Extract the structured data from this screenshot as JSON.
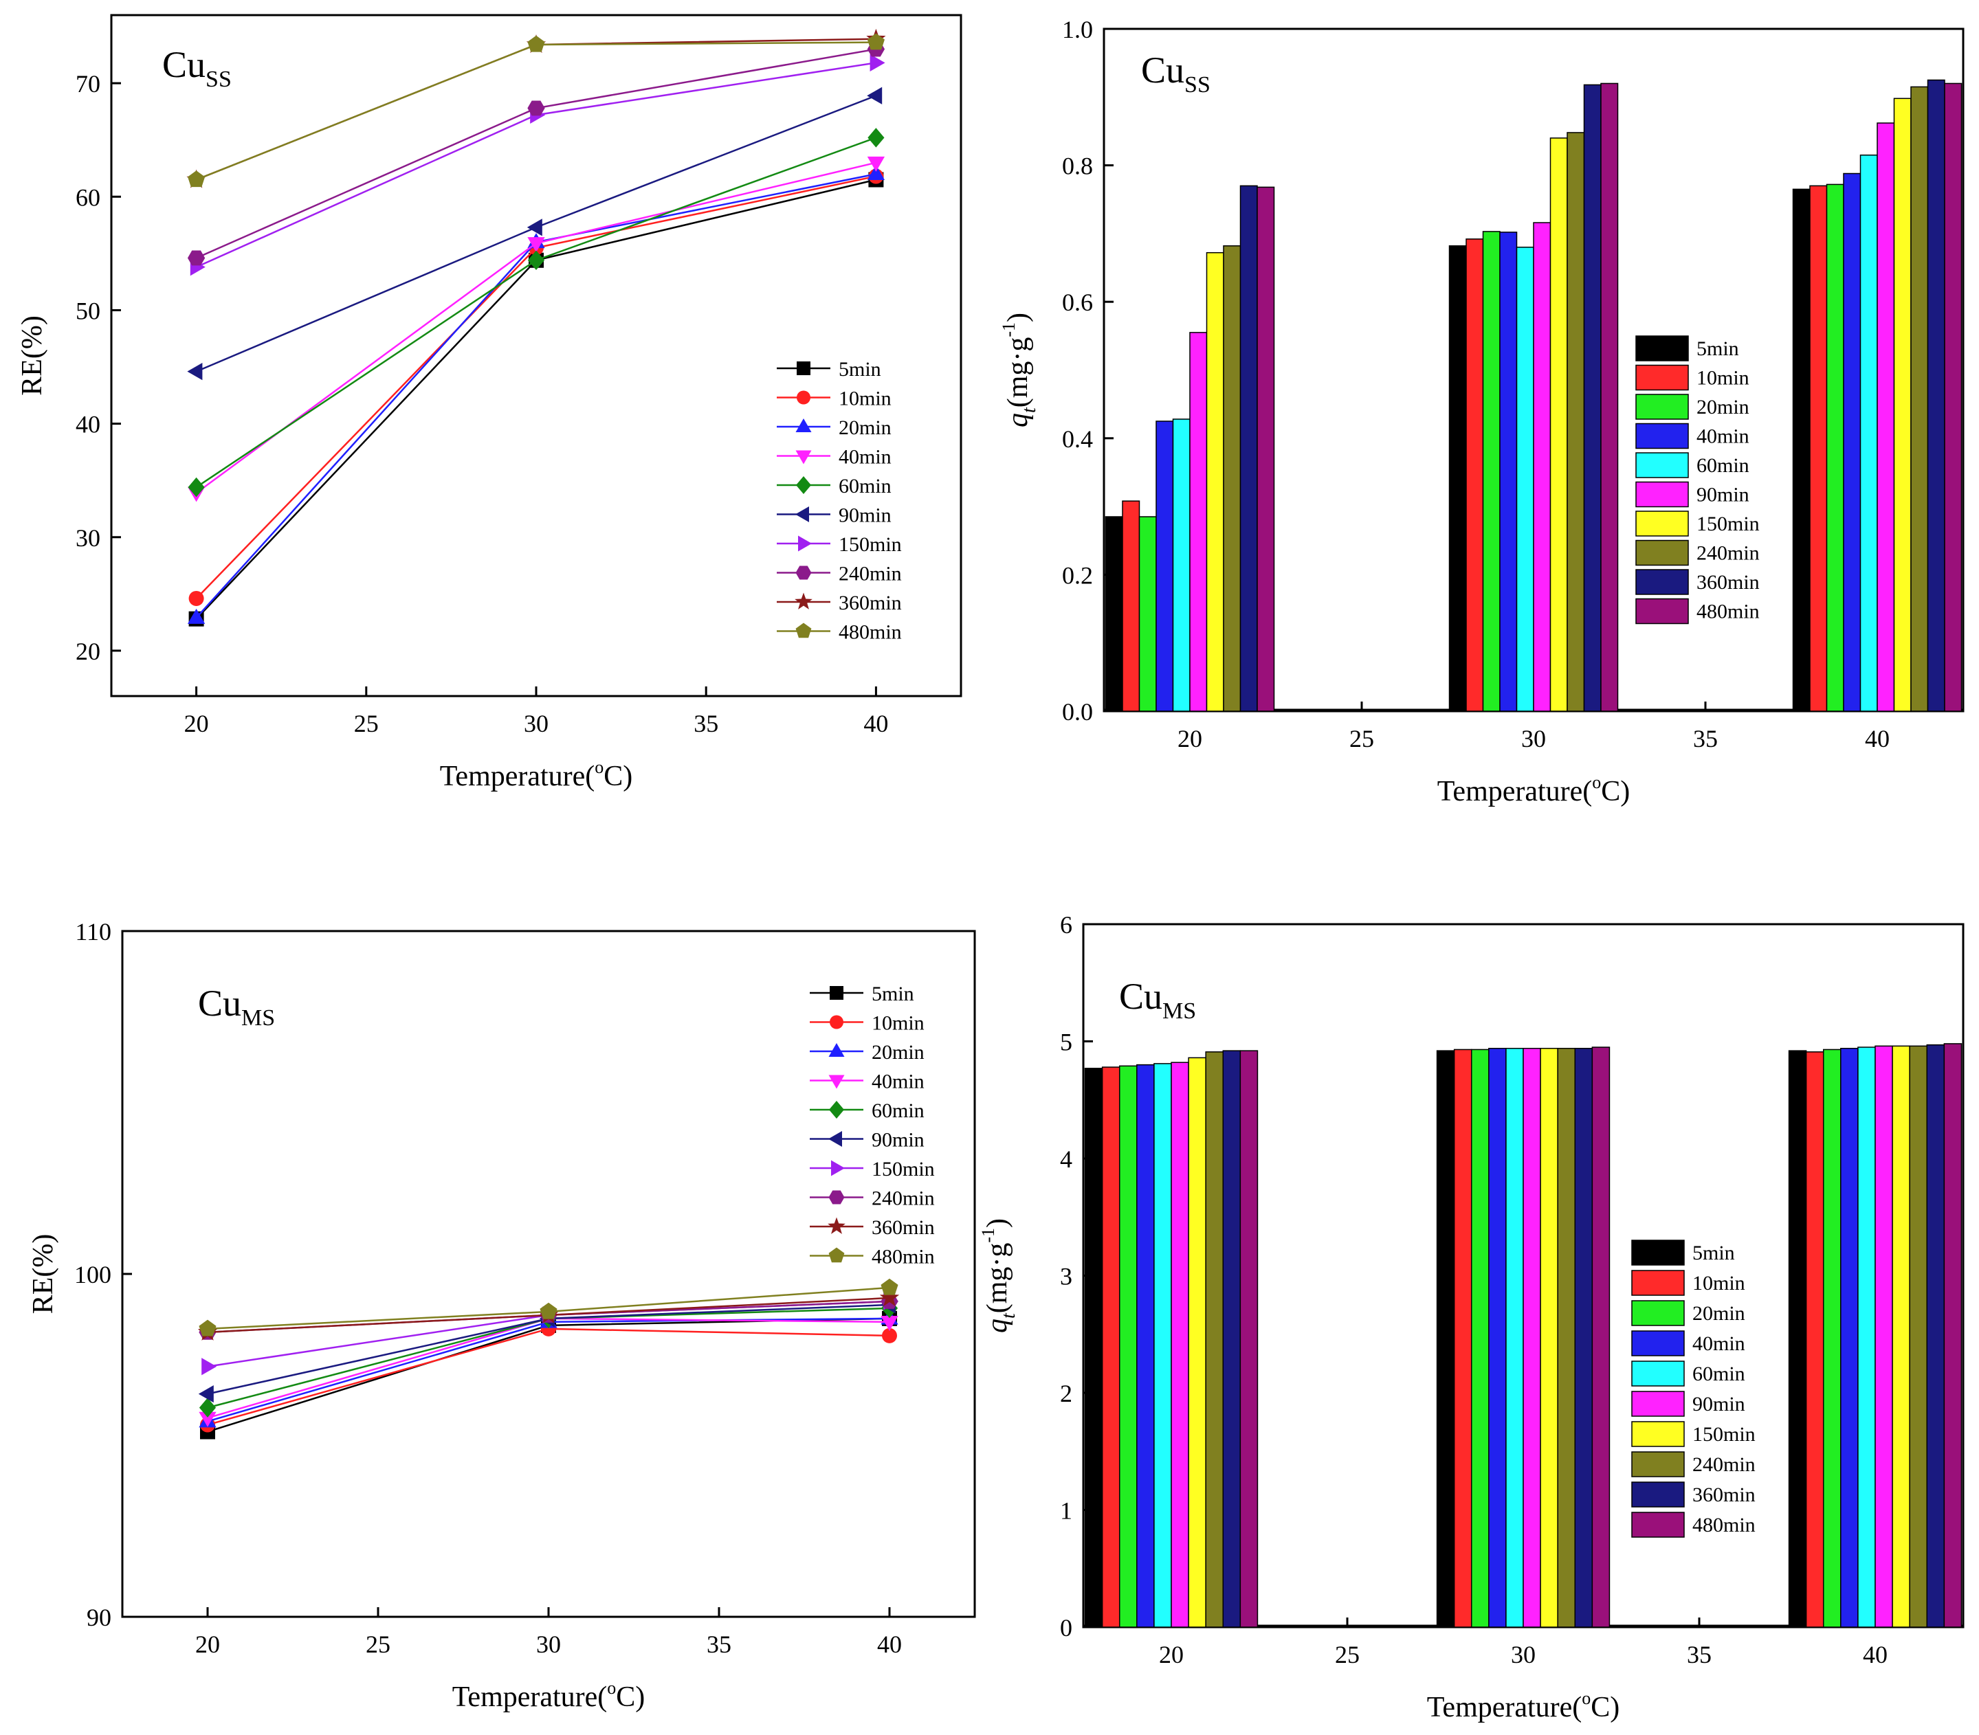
{
  "figure_panels": {
    "tl": {
      "title": "Cu",
      "subscript": "SS"
    },
    "tr": {
      "title": "Cu",
      "subscript": "SS"
    },
    "bl": {
      "title": "Cu",
      "subscript": "MS"
    },
    "br": {
      "title": "Cu",
      "subscript": "MS"
    }
  },
  "axis_text": {
    "x_label_main": "Temperature(",
    "x_label_deg": "o",
    "x_label_unit": "C)",
    "re_label": "RE(%)",
    "q_label_q": "q",
    "q_label_t": "t",
    "q_label_unit": "(mg·g",
    "q_label_exp": "-1",
    "q_label_close": ")"
  },
  "series_style": [
    {
      "name": "5min",
      "color": "#000000",
      "marker": "square"
    },
    {
      "name": "10min",
      "color": "#ff2020",
      "marker": "circle"
    },
    {
      "name": "20min",
      "color": "#2020ff",
      "marker": "triangle-up"
    },
    {
      "name": "40min",
      "color": "#ff20ff",
      "marker": "triangle-down"
    },
    {
      "name": "60min",
      "color": "#138a13",
      "marker": "diamond"
    },
    {
      "name": "90min",
      "color": "#1a1a80",
      "marker": "triangle-left"
    },
    {
      "name": "150min",
      "color": "#a020f0",
      "marker": "triangle-right"
    },
    {
      "name": "240min",
      "color": "#8b1a8b",
      "marker": "hexagon"
    },
    {
      "name": "360min",
      "color": "#8b1a1a",
      "marker": "star"
    },
    {
      "name": "480min",
      "color": "#808020",
      "marker": "pentagon"
    }
  ],
  "bar_colors": [
    "#000000",
    "#ff2a2a",
    "#22ee22",
    "#2222ee",
    "#22ffff",
    "#ff22ff",
    "#ffff22",
    "#808020",
    "#1a1a80",
    "#9a107a"
  ],
  "chart_data": [
    {
      "id": "tl",
      "type": "line",
      "title": "Cu_SS",
      "xlabel": "Temperature(°C)",
      "ylabel": "RE(%)",
      "x": [
        20,
        30,
        40
      ],
      "xlim": [
        17.5,
        42.5
      ],
      "ylim": [
        16,
        76
      ],
      "xticks": [
        20,
        25,
        30,
        35,
        40
      ],
      "yticks": [
        20,
        30,
        40,
        50,
        60,
        70
      ],
      "legend": "bottom-right",
      "series": [
        {
          "name": "5min",
          "values": [
            22.8,
            54.4,
            61.5
          ]
        },
        {
          "name": "10min",
          "values": [
            24.6,
            55.5,
            61.8
          ]
        },
        {
          "name": "20min",
          "values": [
            22.9,
            56.0,
            62.0
          ]
        },
        {
          "name": "40min",
          "values": [
            33.9,
            55.9,
            63.0
          ]
        },
        {
          "name": "60min",
          "values": [
            34.4,
            54.4,
            65.2
          ]
        },
        {
          "name": "90min",
          "values": [
            44.6,
            57.3,
            68.9
          ]
        },
        {
          "name": "150min",
          "values": [
            53.8,
            67.2,
            71.8
          ]
        },
        {
          "name": "240min",
          "values": [
            54.6,
            67.8,
            73.0
          ]
        },
        {
          "name": "360min",
          "values": [
            61.5,
            73.4,
            73.9
          ]
        },
        {
          "name": "480min",
          "values": [
            61.5,
            73.4,
            73.6
          ]
        }
      ]
    },
    {
      "id": "tr",
      "type": "bar",
      "title": "Cu_SS",
      "xlabel": "Temperature(°C)",
      "ylabel": "qt(mg·g-1)",
      "categories": [
        20,
        30,
        40
      ],
      "xlim": [
        17.5,
        42.5
      ],
      "ylim": [
        0,
        1.0
      ],
      "xticks": [
        20,
        25,
        30,
        35,
        40
      ],
      "yticks": [
        0.0,
        0.2,
        0.4,
        0.6,
        0.8,
        1.0
      ],
      "ytick_labels": [
        "0.0",
        "0.2",
        "0.4",
        "0.6",
        "0.8",
        "1.0"
      ],
      "legend": "center-right",
      "series": [
        {
          "name": "5min",
          "values": [
            0.285,
            0.682,
            0.765
          ]
        },
        {
          "name": "10min",
          "values": [
            0.308,
            0.692,
            0.77
          ]
        },
        {
          "name": "20min",
          "values": [
            0.285,
            0.703,
            0.772
          ]
        },
        {
          "name": "40min",
          "values": [
            0.425,
            0.702,
            0.788
          ]
        },
        {
          "name": "60min",
          "values": [
            0.428,
            0.68,
            0.815
          ]
        },
        {
          "name": "90min",
          "values": [
            0.555,
            0.716,
            0.862
          ]
        },
        {
          "name": "150min",
          "values": [
            0.672,
            0.84,
            0.898
          ]
        },
        {
          "name": "240min",
          "values": [
            0.682,
            0.848,
            0.915
          ]
        },
        {
          "name": "360min",
          "values": [
            0.77,
            0.918,
            0.925
          ]
        },
        {
          "name": "480min",
          "values": [
            0.768,
            0.92,
            0.92
          ]
        }
      ]
    },
    {
      "id": "bl",
      "type": "line",
      "title": "Cu_MS",
      "xlabel": "Temperature(°C)",
      "ylabel": "RE(%)",
      "x": [
        20,
        30,
        40
      ],
      "xlim": [
        17.5,
        42.5
      ],
      "ylim": [
        90,
        110
      ],
      "xticks": [
        20,
        25,
        30,
        35,
        40
      ],
      "yticks": [
        90,
        100,
        110
      ],
      "legend": "top-right",
      "series": [
        {
          "name": "5min",
          "values": [
            95.4,
            98.5,
            98.7
          ]
        },
        {
          "name": "10min",
          "values": [
            95.6,
            98.4,
            98.2
          ]
        },
        {
          "name": "20min",
          "values": [
            95.7,
            98.6,
            98.7
          ]
        },
        {
          "name": "40min",
          "values": [
            95.8,
            98.7,
            98.6
          ]
        },
        {
          "name": "60min",
          "values": [
            96.1,
            98.7,
            99.0
          ]
        },
        {
          "name": "90min",
          "values": [
            96.5,
            98.7,
            99.1
          ]
        },
        {
          "name": "150min",
          "values": [
            97.3,
            98.8,
            99.2
          ]
        },
        {
          "name": "240min",
          "values": [
            98.3,
            98.8,
            99.2
          ]
        },
        {
          "name": "360min",
          "values": [
            98.3,
            98.8,
            99.3
          ]
        },
        {
          "name": "480min",
          "values": [
            98.4,
            98.9,
            99.6
          ]
        }
      ]
    },
    {
      "id": "br",
      "type": "bar",
      "title": "Cu_MS",
      "xlabel": "Temperature(°C)",
      "ylabel": "qt(mg·g-1)",
      "categories": [
        20,
        30,
        40
      ],
      "xlim": [
        17.5,
        42.5
      ],
      "ylim": [
        0,
        6
      ],
      "xticks": [
        20,
        25,
        30,
        35,
        40
      ],
      "yticks": [
        0,
        1,
        2,
        3,
        4,
        5,
        6
      ],
      "ytick_labels": [
        "0",
        "1",
        "2",
        "3",
        "4",
        "5",
        "6"
      ],
      "legend": "center-right",
      "series": [
        {
          "name": "5min",
          "values": [
            4.77,
            4.92,
            4.92
          ]
        },
        {
          "name": "10min",
          "values": [
            4.78,
            4.93,
            4.91
          ]
        },
        {
          "name": "20min",
          "values": [
            4.79,
            4.93,
            4.93
          ]
        },
        {
          "name": "40min",
          "values": [
            4.8,
            4.94,
            4.94
          ]
        },
        {
          "name": "60min",
          "values": [
            4.81,
            4.94,
            4.95
          ]
        },
        {
          "name": "90min",
          "values": [
            4.82,
            4.94,
            4.96
          ]
        },
        {
          "name": "150min",
          "values": [
            4.86,
            4.94,
            4.96
          ]
        },
        {
          "name": "240min",
          "values": [
            4.91,
            4.94,
            4.96
          ]
        },
        {
          "name": "360min",
          "values": [
            4.92,
            4.94,
            4.97
          ]
        },
        {
          "name": "480min",
          "values": [
            4.92,
            4.95,
            4.98
          ]
        }
      ]
    }
  ]
}
